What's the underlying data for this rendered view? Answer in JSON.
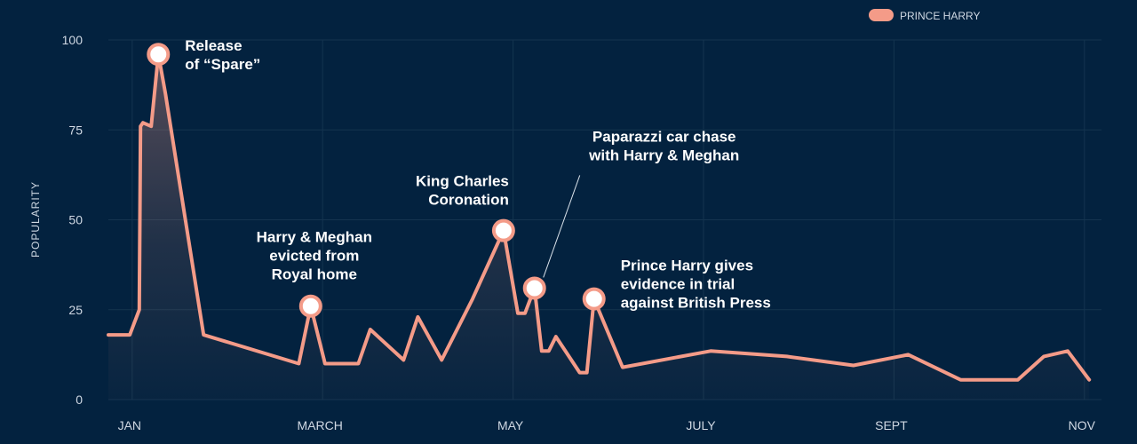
{
  "chart_data": {
    "type": "area",
    "title": "",
    "xlabel": "",
    "ylabel": "POPULARITY",
    "ylim": [
      0,
      100
    ],
    "grid": true,
    "legend_position": "top-right",
    "x_ticks": [
      {
        "label": "JAN",
        "x": 1
      },
      {
        "label": "MARCH",
        "x": 9
      },
      {
        "label": "MAY",
        "x": 17
      },
      {
        "label": "JULY",
        "x": 25
      },
      {
        "label": "SEPT",
        "x": 33
      },
      {
        "label": "NOV",
        "x": 41
      }
    ],
    "y_ticks": [
      0,
      25,
      50,
      75,
      100
    ],
    "series": [
      {
        "name": "PRINCE HARRY",
        "color": "#f49b88",
        "points": [
          [
            0,
            18
          ],
          [
            0.9,
            18
          ],
          [
            1.3,
            25
          ],
          [
            1.35,
            76
          ],
          [
            1.45,
            77
          ],
          [
            1.8,
            76
          ],
          [
            2.1,
            96
          ],
          [
            2.4,
            85
          ],
          [
            4,
            18
          ],
          [
            8,
            10
          ],
          [
            8.5,
            26
          ],
          [
            9.1,
            10
          ],
          [
            10.5,
            10
          ],
          [
            11,
            19.5
          ],
          [
            12.4,
            11
          ],
          [
            13,
            23
          ],
          [
            14,
            11
          ],
          [
            15.3,
            28
          ],
          [
            16.6,
            47
          ],
          [
            17.2,
            24
          ],
          [
            17.5,
            24
          ],
          [
            17.9,
            31
          ],
          [
            18.2,
            13.5
          ],
          [
            18.5,
            13.5
          ],
          [
            18.8,
            17.5
          ],
          [
            19.8,
            7.5
          ],
          [
            20.1,
            7.5
          ],
          [
            20.4,
            28
          ],
          [
            21.6,
            9
          ],
          [
            25.3,
            13.5
          ],
          [
            28.5,
            12
          ],
          [
            31.3,
            9.5
          ],
          [
            33.6,
            12.5
          ],
          [
            35.8,
            5.5
          ],
          [
            38.2,
            5.5
          ],
          [
            39.3,
            12
          ],
          [
            40.3,
            13.5
          ],
          [
            41.2,
            5.5
          ]
        ]
      }
    ],
    "annotations": [
      {
        "lines": [
          "Release",
          "of “Spare”"
        ],
        "x": 2.1,
        "y": 96,
        "marker": true
      },
      {
        "lines": [
          "Harry & Meghan",
          "evicted from",
          "Royal home"
        ],
        "x": 8.5,
        "y": 26,
        "marker": true
      },
      {
        "lines": [
          "King Charles",
          "Coronation"
        ],
        "x": 16.6,
        "y": 47,
        "marker": true
      },
      {
        "lines": [
          "Paparazzi car chase",
          "with Harry & Meghan"
        ],
        "x": 17.9,
        "y": 31,
        "marker": true
      },
      {
        "lines": [
          "Prince Harry gives",
          "evidence in trial",
          "against British Press"
        ],
        "x": 20.4,
        "y": 28,
        "marker": true
      }
    ]
  }
}
